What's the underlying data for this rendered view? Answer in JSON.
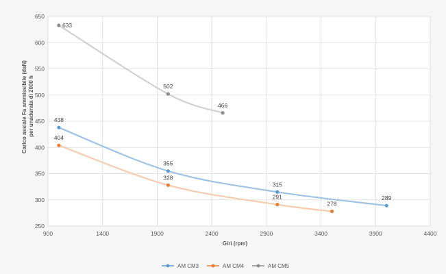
{
  "chart_data": {
    "type": "line",
    "title": "",
    "xlabel": "Giri (rpm)",
    "ylabel_lines": [
      "Carico assiale Fa ammissibile (daN)",
      "per unadurata di 2000 h"
    ],
    "xlim": [
      900,
      4400
    ],
    "ylim": [
      250,
      650
    ],
    "xticks": [
      900,
      1400,
      1900,
      2400,
      2900,
      3400,
      3900,
      4400
    ],
    "yticks": [
      250,
      300,
      350,
      400,
      450,
      500,
      550,
      600,
      650
    ],
    "grid": true,
    "smooth": true,
    "legend_position": "bottom",
    "series": [
      {
        "name": "AM CM3",
        "color": "#9dc3e6",
        "marker_color": "#5b9bd5",
        "points": [
          {
            "x": 1000,
            "y": 438
          },
          {
            "x": 2000,
            "y": 355
          },
          {
            "x": 3000,
            "y": 315
          },
          {
            "x": 4000,
            "y": 289
          }
        ]
      },
      {
        "name": "AM CM4",
        "color": "#f8cbad",
        "marker_color": "#ed7d31",
        "points": [
          {
            "x": 1000,
            "y": 404
          },
          {
            "x": 2000,
            "y": 328
          },
          {
            "x": 3000,
            "y": 291
          },
          {
            "x": 3500,
            "y": 278
          }
        ]
      },
      {
        "name": "AM CM5",
        "color": "#d0d0d0",
        "marker_color": "#8c8c8c",
        "points": [
          {
            "x": 1000,
            "y": 633
          },
          {
            "x": 2000,
            "y": 502
          },
          {
            "x": 2500,
            "y": 466
          }
        ]
      }
    ]
  }
}
